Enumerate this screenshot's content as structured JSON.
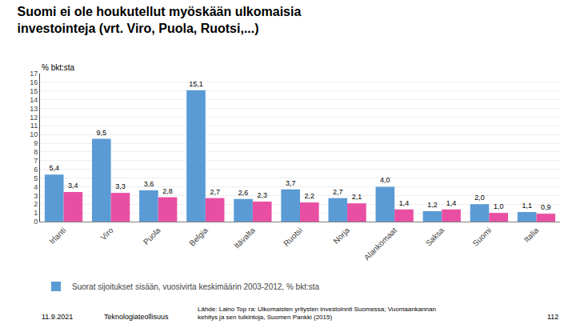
{
  "chart_data": {
    "type": "bar",
    "title": "Suomi ei ole houkutellut myöskään ulkomaisia\ninvestointeja (vrt. Viro, Puola, Ruotsi,...)",
    "categories": [
      "Irlanti",
      "Viro",
      "Puola",
      "Belgia",
      "Itävalta",
      "Ruotsi",
      "Norja",
      "Alankomaat",
      "Saksa",
      "Suomi",
      "Italia"
    ],
    "series": [
      {
        "name": "Suorat sijoitukset sisään, vuosivirta keskimäärin 2003-2012, % bkt:sta",
        "color": "#5B9BD5",
        "values": [
          5.4,
          9.5,
          3.6,
          15.1,
          2.6,
          3.7,
          2.7,
          4.0,
          1.2,
          2.0,
          1.1
        ],
        "value_labels": [
          "5,4",
          "9,5",
          "3,6",
          "15,1",
          "2,6",
          "3,7",
          "2,7",
          "4,0",
          "1,2",
          "2,0",
          "1,1"
        ]
      },
      {
        "color": "#E84FA3",
        "values": [
          3.4,
          3.3,
          2.8,
          2.7,
          2.3,
          2.2,
          2.1,
          1.4,
          1.4,
          1.0,
          0.9
        ],
        "value_labels": [
          "3,4",
          "3,3",
          "2,8",
          "2,7",
          "2,3",
          "2,2",
          "2,1",
          "1,4",
          "1,4",
          "1,0",
          "0,9"
        ]
      }
    ],
    "ylim": [
      0,
      17
    ],
    "yticks": [
      0,
      1,
      2,
      3,
      4,
      5,
      6,
      7,
      8,
      9,
      10,
      11,
      12,
      13,
      14,
      15,
      16,
      17
    ],
    "grid": true,
    "legend": "bottom",
    "data_labels": true,
    "y_label": "% bkt:sta",
    "annotations": [
      "11.9.2021",
      "Teknologiateollisuus",
      "Lähde: Laino Top ra: Ulkomaisten yritysten investoinnit Suomessa; Vuomaankannan\nkehitys ja sen tulkintoja, Suomen Pankki (2015)",
      "112"
    ]
  }
}
